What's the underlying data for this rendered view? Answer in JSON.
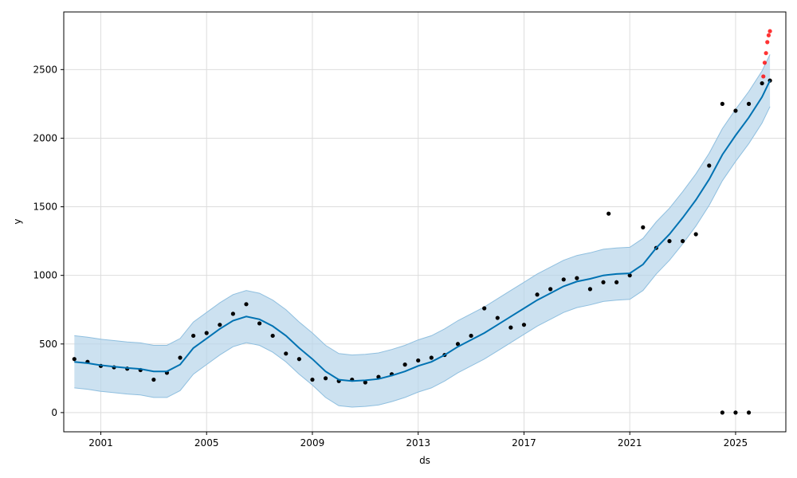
{
  "chart_data": {
    "type": "scatter",
    "title": "",
    "xlabel": "ds",
    "ylabel": "y",
    "xlim": [
      1999.6,
      2026.9
    ],
    "ylim": [
      -140,
      2920
    ],
    "grid": true,
    "x_ticks": [
      {
        "value": 2001,
        "label": "2001"
      },
      {
        "value": 2005,
        "label": "2005"
      },
      {
        "value": 2009,
        "label": "2009"
      },
      {
        "value": 2013,
        "label": "2013"
      },
      {
        "value": 2017,
        "label": "2017"
      },
      {
        "value": 2021,
        "label": "2021"
      },
      {
        "value": 2025,
        "label": "2025"
      }
    ],
    "y_ticks": [
      {
        "value": 0,
        "label": "0"
      },
      {
        "value": 500,
        "label": "500"
      },
      {
        "value": 1000,
        "label": "1000"
      },
      {
        "value": 1500,
        "label": "1500"
      },
      {
        "value": 2000,
        "label": "2000"
      },
      {
        "value": 2500,
        "label": "2500"
      }
    ],
    "colors": {
      "actual": "#000000",
      "forecast": "#0072B2",
      "interval_fill": "#b6d4e9",
      "interval_edge": "#8fbfdf",
      "future_actual": "#ff0000",
      "grid": "#dddddd"
    },
    "forecast": {
      "x": [
        2000.0,
        2000.5,
        2001.0,
        2001.5,
        2002.0,
        2002.5,
        2003.0,
        2003.5,
        2004.0,
        2004.5,
        2005.0,
        2005.5,
        2006.0,
        2006.5,
        2007.0,
        2007.5,
        2008.0,
        2008.5,
        2009.0,
        2009.5,
        2010.0,
        2010.5,
        2011.0,
        2011.5,
        2012.0,
        2012.5,
        2013.0,
        2013.5,
        2014.0,
        2014.5,
        2015.0,
        2015.5,
        2016.0,
        2016.5,
        2017.0,
        2017.5,
        2018.0,
        2018.5,
        2019.0,
        2019.5,
        2020.0,
        2020.5,
        2021.0,
        2021.5,
        2022.0,
        2022.5,
        2023.0,
        2023.5,
        2024.0,
        2024.5,
        2025.0,
        2025.5,
        2026.0,
        2026.3
      ],
      "yhat": [
        370,
        360,
        345,
        335,
        325,
        318,
        300,
        300,
        350,
        470,
        540,
        610,
        670,
        700,
        680,
        630,
        560,
        470,
        390,
        300,
        240,
        230,
        235,
        245,
        270,
        300,
        340,
        370,
        420,
        480,
        530,
        580,
        640,
        700,
        760,
        820,
        870,
        920,
        955,
        975,
        1000,
        1010,
        1015,
        1080,
        1200,
        1300,
        1420,
        1550,
        1700,
        1880,
        2020,
        2150,
        2300,
        2420
      ],
      "lower": [
        180,
        170,
        155,
        145,
        135,
        128,
        110,
        110,
        160,
        280,
        350,
        420,
        480,
        510,
        490,
        440,
        370,
        280,
        200,
        110,
        50,
        40,
        45,
        55,
        80,
        110,
        150,
        180,
        230,
        290,
        340,
        390,
        450,
        510,
        570,
        630,
        680,
        730,
        765,
        785,
        810,
        820,
        825,
        890,
        1010,
        1110,
        1230,
        1360,
        1510,
        1690,
        1830,
        1960,
        2110,
        2230
      ],
      "upper": [
        560,
        550,
        535,
        525,
        515,
        508,
        490,
        490,
        540,
        660,
        730,
        800,
        860,
        890,
        870,
        820,
        750,
        660,
        580,
        490,
        430,
        420,
        425,
        435,
        460,
        490,
        530,
        560,
        610,
        670,
        720,
        770,
        830,
        890,
        950,
        1010,
        1060,
        1110,
        1145,
        1165,
        1190,
        1200,
        1205,
        1270,
        1390,
        1490,
        1610,
        1740,
        1890,
        2070,
        2210,
        2340,
        2490,
        2610
      ]
    },
    "actual": {
      "x": [
        2000.0,
        2000.5,
        2001.0,
        2001.5,
        2002.0,
        2002.5,
        2003.0,
        2003.5,
        2004.0,
        2004.5,
        2005.0,
        2005.5,
        2006.0,
        2006.5,
        2007.0,
        2007.5,
        2008.0,
        2008.5,
        2009.0,
        2009.5,
        2010.0,
        2010.5,
        2011.0,
        2011.5,
        2012.0,
        2012.5,
        2013.0,
        2013.5,
        2014.0,
        2014.5,
        2015.0,
        2015.5,
        2016.0,
        2016.5,
        2017.0,
        2017.5,
        2018.0,
        2018.5,
        2019.0,
        2019.5,
        2020.0,
        2020.2,
        2020.5,
        2021.0,
        2021.5,
        2022.0,
        2022.5,
        2023.0,
        2023.5,
        2024.0,
        2024.5,
        2025.0,
        2025.5,
        2026.0,
        2026.3
      ],
      "y": [
        390,
        370,
        340,
        330,
        320,
        310,
        240,
        290,
        400,
        560,
        580,
        640,
        720,
        790,
        650,
        560,
        430,
        390,
        240,
        250,
        230,
        240,
        220,
        260,
        280,
        350,
        380,
        400,
        420,
        500,
        560,
        760,
        690,
        620,
        640,
        860,
        900,
        970,
        980,
        900,
        950,
        1450,
        950,
        1000,
        1350,
        1200,
        1250,
        1250,
        1300,
        1800,
        2250,
        2200,
        2250,
        2400,
        2420
      ],
      "outliers": {
        "x": [
          2024.5,
          2025.0,
          2025.5
        ],
        "y": [
          0,
          0,
          0
        ]
      }
    },
    "future_actual": {
      "x": [
        2026.05,
        2026.1,
        2026.15,
        2026.2,
        2026.25,
        2026.3
      ],
      "y": [
        2450,
        2550,
        2620,
        2700,
        2750,
        2780
      ]
    }
  }
}
